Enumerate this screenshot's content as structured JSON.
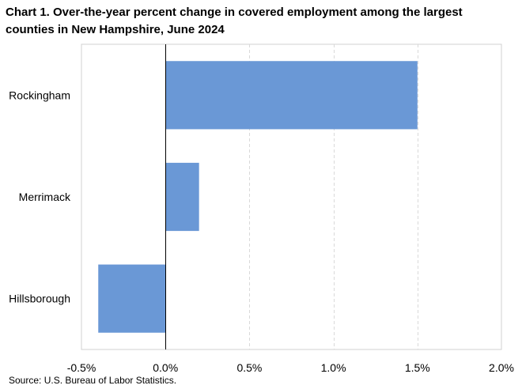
{
  "chart_data": {
    "type": "bar",
    "orientation": "horizontal",
    "title_line1": "Chart 1. Over-the-year percent change in covered employment among the largest",
    "title_line2": "counties in New Hampshire, June 2024",
    "categories": [
      "Rockingham",
      "Merrimack",
      "Hillsborough"
    ],
    "values": [
      1.5,
      0.2,
      -0.4
    ],
    "xlim": [
      -0.5,
      2.0
    ],
    "x_ticks": [
      -0.5,
      0.0,
      0.5,
      1.0,
      1.5,
      2.0
    ],
    "x_tick_labels": [
      "-0.5%",
      "0.0%",
      "0.5%",
      "1.0%",
      "1.5%",
      "2.0%"
    ],
    "grid": "vertical dashed",
    "bar_color": "#6a98d6",
    "source": "Source: U.S. Bureau of Labor Statistics."
  }
}
